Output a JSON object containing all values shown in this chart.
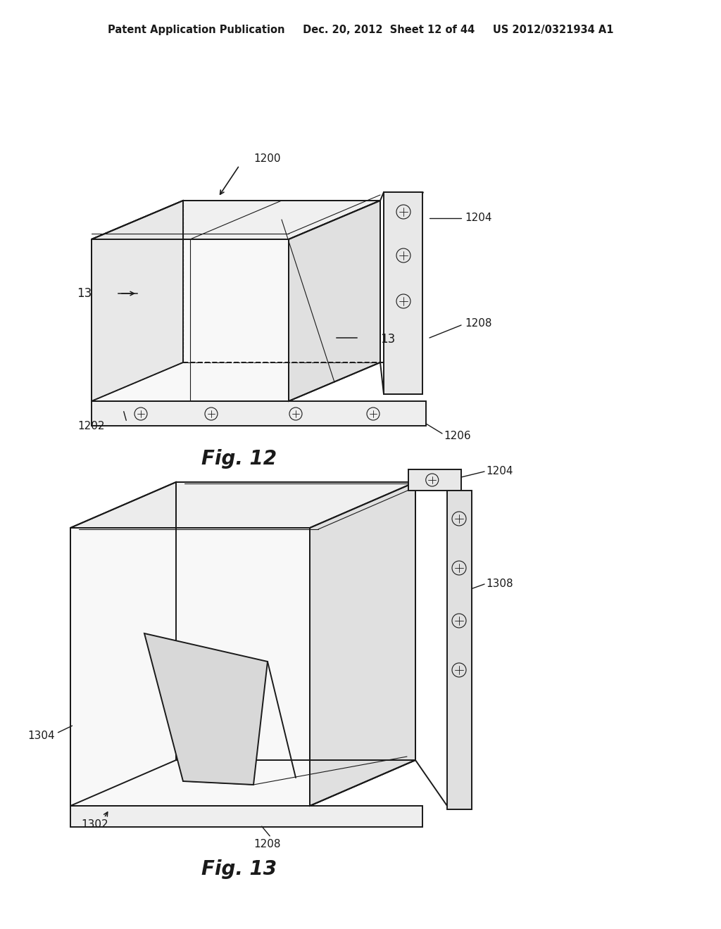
{
  "bg_color": "#ffffff",
  "lc": "#1a1a1a",
  "header": "Patent Application Publication     Dec. 20, 2012  Sheet 12 of 44     US 2012/0321934 A1",
  "fig12_title": "Fig. 12",
  "fig13_title": "Fig. 13",
  "lw": 1.4,
  "lw_thin": 0.8,
  "lw_thick": 2.0
}
